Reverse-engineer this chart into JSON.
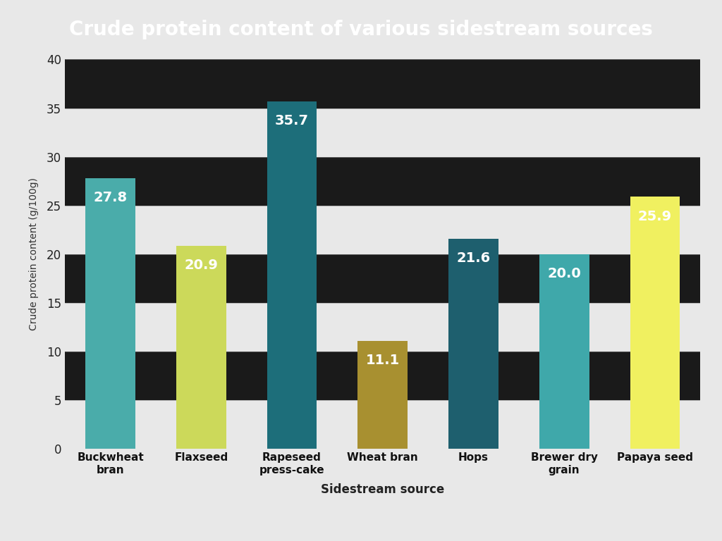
{
  "title": "Crude protein content of various sidestream sources",
  "title_bg_color": "#3a8a8c",
  "title_text_color": "#ffffff",
  "categories": [
    "Buckwheat\nbran",
    "Flaxseed",
    "Rapeseed\npress-cake",
    "Wheat bran",
    "Hops",
    "Brewer dry\ngrain",
    "Papaya seed"
  ],
  "values": [
    27.8,
    20.9,
    35.7,
    11.1,
    21.6,
    20.0,
    25.9
  ],
  "bar_colors": [
    "#4aacaa",
    "#ccd95a",
    "#1d6e7a",
    "#a89030",
    "#1e5f6e",
    "#3fa8aa",
    "#f0f060"
  ],
  "ylabel": "Crude protein content (g/100g)",
  "xlabel": "Sidestream source",
  "ylim": [
    0,
    40
  ],
  "yticks": [
    0,
    5,
    10,
    15,
    20,
    25,
    30,
    35,
    40
  ],
  "bg_color": "#e8e8e8",
  "stripe_white": "#e8e8e8",
  "stripe_black": "#1a1a1a",
  "label_fontsize": 11,
  "tick_fontsize": 12,
  "value_label_color": "#ffffff",
  "value_label_fontsize": 14,
  "title_fontsize": 20
}
